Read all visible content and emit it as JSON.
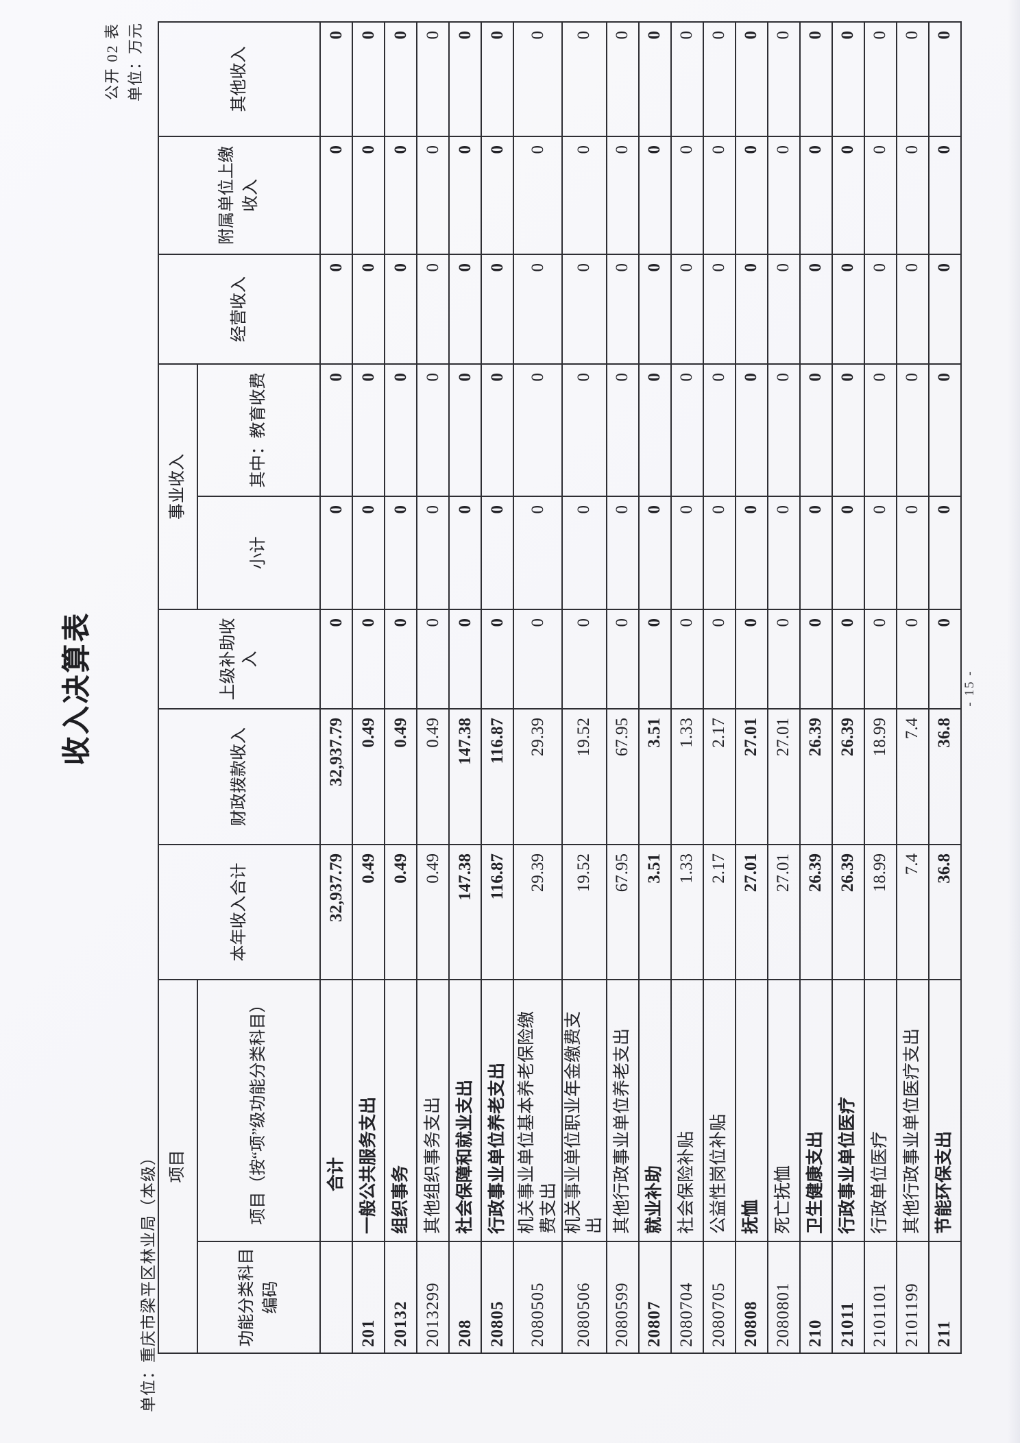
{
  "page": {
    "title": "收入决算表",
    "form_code": "公开 02 表",
    "unit_note": "单位：万元",
    "org_label": "单位：重庆市梁平区林业局（本级）",
    "page_number": "- 15 -"
  },
  "table": {
    "headers": {
      "project": "项目",
      "code_lines": [
        "功能分类科目",
        "编码"
      ],
      "name2": "项目（按“项”级功能分类科目）",
      "annual_total": "本年收入合计",
      "fiscal": "财政拨款收入",
      "superior": "上级补助收入",
      "business": "事业收入",
      "subtotal": "小计",
      "edu": "其中：教育收费",
      "operating": "经营收入",
      "affiliated_lines": [
        "附属单位上缴",
        "收入"
      ],
      "other": "其他收入"
    },
    "zero": "0",
    "rows": [
      {
        "code": "",
        "name": "合计",
        "total": "32,937.79",
        "fiscal": "32,937.79",
        "bold": true,
        "total_row": true
      },
      {
        "code": "201",
        "name": "一般公共服务支出",
        "total": "0.49",
        "fiscal": "0.49",
        "bold": true
      },
      {
        "code": "20132",
        "name": "组织事务",
        "total": "0.49",
        "fiscal": "0.49",
        "bold": true
      },
      {
        "code": "2013299",
        "name": "其他组织事务支出",
        "total": "0.49",
        "fiscal": "0.49",
        "bold": false
      },
      {
        "code": "208",
        "name": "社会保障和就业支出",
        "total": "147.38",
        "fiscal": "147.38",
        "bold": true
      },
      {
        "code": "20805",
        "name": "行政事业单位养老支出",
        "total": "116.87",
        "fiscal": "116.87",
        "bold": true
      },
      {
        "code": "2080505",
        "name": "机关事业单位基本养老保险缴费支出",
        "total": "29.39",
        "fiscal": "29.39",
        "bold": false,
        "tall": true
      },
      {
        "code": "2080506",
        "name": "机关事业单位职业年金缴费支出",
        "total": "19.52",
        "fiscal": "19.52",
        "bold": false
      },
      {
        "code": "2080599",
        "name": "其他行政事业单位养老支出",
        "total": "67.95",
        "fiscal": "67.95",
        "bold": false
      },
      {
        "code": "20807",
        "name": "就业补助",
        "total": "3.51",
        "fiscal": "3.51",
        "bold": true
      },
      {
        "code": "2080704",
        "name": "社会保险补贴",
        "total": "1.33",
        "fiscal": "1.33",
        "bold": false
      },
      {
        "code": "2080705",
        "name": "公益性岗位补贴",
        "total": "2.17",
        "fiscal": "2.17",
        "bold": false
      },
      {
        "code": "20808",
        "name": "抚恤",
        "total": "27.01",
        "fiscal": "27.01",
        "bold": true
      },
      {
        "code": "2080801",
        "name": "死亡抚恤",
        "total": "27.01",
        "fiscal": "27.01",
        "bold": false
      },
      {
        "code": "210",
        "name": "卫生健康支出",
        "total": "26.39",
        "fiscal": "26.39",
        "bold": true
      },
      {
        "code": "21011",
        "name": "行政事业单位医疗",
        "total": "26.39",
        "fiscal": "26.39",
        "bold": true
      },
      {
        "code": "2101101",
        "name": "行政单位医疗",
        "total": "18.99",
        "fiscal": "18.99",
        "bold": false
      },
      {
        "code": "2101199",
        "name": "其他行政事业单位医疗支出",
        "total": "7.4",
        "fiscal": "7.4",
        "bold": false
      },
      {
        "code": "211",
        "name": "节能环保支出",
        "total": "36.8",
        "fiscal": "36.8",
        "bold": true
      }
    ]
  }
}
